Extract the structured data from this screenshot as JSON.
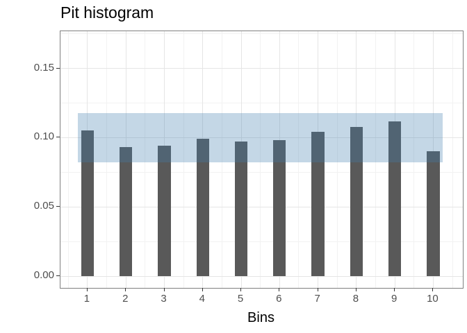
{
  "chart_data": {
    "type": "bar",
    "title": "Pit histogram",
    "xlabel": "Bins",
    "ylabel": "",
    "categories": [
      "1",
      "2",
      "3",
      "4",
      "5",
      "6",
      "7",
      "8",
      "9",
      "10"
    ],
    "values": [
      0.105,
      0.093,
      0.094,
      0.099,
      0.097,
      0.098,
      0.104,
      0.108,
      0.112,
      0.09
    ],
    "band": {
      "lower": 0.082,
      "upper": 0.118,
      "x_start": 0.75,
      "x_end": 10.25
    },
    "y_tick_labels": [
      "0.00",
      "0.05",
      "0.10",
      "0.15"
    ],
    "y_tick_values": [
      0.0,
      0.05,
      0.1,
      0.15
    ],
    "y_minor_values": [
      0.025,
      0.075,
      0.125,
      0.175
    ],
    "x_tick_values": [
      1,
      2,
      3,
      4,
      5,
      6,
      7,
      8,
      9,
      10
    ],
    "x_minor_values": [
      0.5,
      1.5,
      2.5,
      3.5,
      4.5,
      5.5,
      6.5,
      7.5,
      8.5,
      9.5,
      10.5
    ],
    "ylim": [
      -0.0085,
      0.1769
    ],
    "xlim": [
      0.295,
      10.77
    ],
    "bar_width_bins": 0.33,
    "grid": true,
    "legend": "none",
    "colors": {
      "bar": "#595959",
      "band_base": "#427DAE",
      "band_alpha": 0.31,
      "grid_major": "#e5e5e5",
      "grid_minor": "#f2f2f2",
      "panel_border": "#7f7f7f",
      "tick_label": "#4d4d4d",
      "tick_mark": "#333333",
      "title": "#000000"
    }
  }
}
